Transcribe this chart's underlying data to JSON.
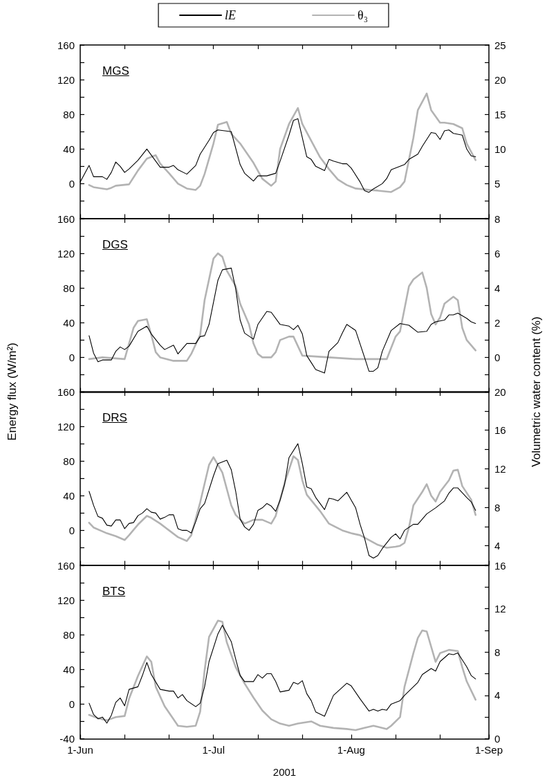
{
  "chart_data": [
    {
      "type": "line",
      "title": "MGS",
      "tick_labels": "y",
      "legend": "top",
      "marker": "none",
      "line_style": "solid",
      "xlim": [
        "2001-06-01",
        "2001-09-01"
      ],
      "ylim": [
        -40,
        160
      ],
      "yticks": [
        {
          "value": -40,
          "label": null
        },
        {
          "value": -20,
          "label": null
        },
        0,
        {
          "value": 20,
          "label": null
        },
        40,
        {
          "value": 60,
          "label": null
        },
        80,
        {
          "value": 100,
          "label": null
        },
        120,
        {
          "value": 140,
          "label": null
        },
        160
      ],
      "y2lim": [
        0,
        25
      ],
      "y2ticks": [
        {
          "value": 0,
          "label": null
        },
        {
          "value": 2.5,
          "label": null
        },
        5,
        {
          "value": 7.5,
          "label": null
        },
        10,
        {
          "value": 12.5,
          "label": null
        },
        15,
        {
          "value": 17.5,
          "label": null
        },
        20,
        {
          "value": 22.5,
          "label": null
        },
        25
      ],
      "series": [
        {
          "name": "lE",
          "color": "#000000",
          "x": [
            "2001-06-01",
            "2001-06-03",
            "2001-06-04",
            "2001-06-05",
            "2001-06-06",
            "2001-06-07",
            "2001-06-08",
            "2001-06-09",
            "2001-06-10",
            "2001-06-11",
            "2001-06-12",
            "2001-06-14",
            "2001-06-16",
            "2001-06-17",
            "2001-06-19",
            "2001-06-21",
            "2001-06-22",
            "2001-06-23",
            "2001-06-25",
            "2001-06-27",
            "2001-06-28",
            "2001-06-30",
            "2001-07-01",
            "2001-07-02",
            "2001-07-05",
            "2001-07-07",
            "2001-07-08",
            "2001-07-10",
            "2001-07-11",
            "2001-07-13",
            "2001-07-15",
            "2001-07-16",
            "2001-07-18",
            "2001-07-19",
            "2001-07-20",
            "2001-07-22",
            "2001-07-23",
            "2001-07-24",
            "2001-07-26",
            "2001-07-27",
            "2001-07-28",
            "2001-07-30",
            "2001-07-31",
            "2001-08-01",
            "2001-08-03",
            "2001-08-04",
            "2001-08-05",
            "2001-08-06",
            "2001-08-08",
            "2001-08-09",
            "2001-08-10",
            "2001-08-12",
            "2001-08-13",
            "2001-08-14",
            "2001-08-16",
            "2001-08-17",
            "2001-08-19",
            "2001-08-20",
            "2001-08-21",
            "2001-08-22",
            "2001-08-23",
            "2001-08-24",
            "2001-08-26",
            "2001-08-27",
            "2001-08-28",
            "2001-08-29"
          ],
          "values": [
            2,
            21,
            8,
            8,
            8,
            5,
            13,
            25,
            20,
            13,
            17,
            27,
            40,
            33,
            19,
            19,
            21,
            16,
            11,
            21,
            34,
            50,
            59,
            62,
            60,
            22,
            12,
            3,
            9,
            9,
            12,
            26,
            56,
            73,
            75,
            31,
            28,
            20,
            15,
            28,
            26,
            23,
            23,
            18,
            2,
            -8,
            -10,
            -6,
            0,
            6,
            16,
            20,
            22,
            28,
            34,
            43,
            59,
            58,
            51,
            61,
            62,
            58,
            56,
            40,
            32,
            31
          ]
        },
        {
          "name": "θ₃",
          "color": "#b3b3b3",
          "axis": "y2",
          "x": [
            "2001-06-03",
            "2001-06-04",
            "2001-06-07",
            "2001-06-08",
            "2001-06-09",
            "2001-06-12",
            "2001-06-14",
            "2001-06-16",
            "2001-06-18",
            "2001-06-19",
            "2001-06-21",
            "2001-06-23",
            "2001-06-25",
            "2001-06-27",
            "2001-06-28",
            "2001-06-29",
            "2001-07-01",
            "2001-07-02",
            "2001-07-04",
            "2001-07-05",
            "2001-07-07",
            "2001-07-10",
            "2001-07-12",
            "2001-07-14",
            "2001-07-15",
            "2001-07-16",
            "2001-07-18",
            "2001-07-20",
            "2001-07-21",
            "2001-07-23",
            "2001-07-25",
            "2001-07-27",
            "2001-07-29",
            "2001-07-31",
            "2001-08-02",
            "2001-08-05",
            "2001-08-07",
            "2001-08-10",
            "2001-08-12",
            "2001-08-13",
            "2001-08-15",
            "2001-08-16",
            "2001-08-18",
            "2001-08-19",
            "2001-08-21",
            "2001-08-22",
            "2001-08-24",
            "2001-08-26",
            "2001-08-27",
            "2001-08-29"
          ],
          "values": [
            4.8,
            4.5,
            4.2,
            4.4,
            4.7,
            4.9,
            6.9,
            8.6,
            9.1,
            7.9,
            6.5,
            5.0,
            4.3,
            4.1,
            4.7,
            6.4,
            10.8,
            13.5,
            13.9,
            12.2,
            10.8,
            8.0,
            5.7,
            4.7,
            5.3,
            10.0,
            13.6,
            15.9,
            13.6,
            11.2,
            8.8,
            7.1,
            5.6,
            4.8,
            4.3,
            4.1,
            4.0,
            3.8,
            4.5,
            5.3,
            11.6,
            15.6,
            18.0,
            15.6,
            13.8,
            13.8,
            13.6,
            13.0,
            10.8,
            8.4
          ]
        }
      ]
    },
    {
      "type": "line",
      "title": "DGS",
      "tick_labels": "y",
      "ylabel": "Energy flux (W/m²)",
      "y2label": "Volumetric water content (%)",
      "marker": "none",
      "line_style": "solid",
      "xlim": [
        "2001-06-01",
        "2001-09-01"
      ],
      "ylim": [
        -40,
        160
      ],
      "yticks": [
        {
          "value": -40,
          "label": null
        },
        {
          "value": -20,
          "label": null
        },
        0,
        {
          "value": 20,
          "label": null
        },
        40,
        {
          "value": 60,
          "label": null
        },
        80,
        {
          "value": 100,
          "label": null
        },
        120,
        {
          "value": 140,
          "label": null
        },
        160
      ],
      "y2lim": [
        -2,
        8
      ],
      "y2ticks": [
        {
          "value": -2,
          "label": null
        },
        {
          "value": -1,
          "label": null
        },
        0,
        {
          "value": 1,
          "label": null
        },
        2,
        {
          "value": 3,
          "label": null
        },
        4,
        {
          "value": 5,
          "label": null
        },
        6,
        {
          "value": 7,
          "label": null
        },
        8
      ],
      "series": [
        {
          "color": "#000000",
          "x": [
            "2001-06-03",
            "2001-06-04",
            "2001-06-05",
            "2001-06-06",
            "2001-06-08",
            "2001-06-09",
            "2001-06-10",
            "2001-06-11",
            "2001-06-12",
            "2001-06-14",
            "2001-06-16",
            "2001-06-17",
            "2001-06-19",
            "2001-06-20",
            "2001-06-22",
            "2001-06-23",
            "2001-06-25",
            "2001-06-27",
            "2001-06-28",
            "2001-06-29",
            "2001-06-30",
            "2001-07-02",
            "2001-07-03",
            "2001-07-05",
            "2001-07-06",
            "2001-07-07",
            "2001-07-08",
            "2001-07-10",
            "2001-07-11",
            "2001-07-13",
            "2001-07-14",
            "2001-07-16",
            "2001-07-18",
            "2001-07-19",
            "2001-07-20",
            "2001-07-21",
            "2001-07-22",
            "2001-07-23",
            "2001-07-24",
            "2001-07-26",
            "2001-07-27",
            "2001-07-29",
            "2001-07-30",
            "2001-07-31",
            "2001-08-02",
            "2001-08-04",
            "2001-08-05",
            "2001-08-06",
            "2001-08-07",
            "2001-08-08",
            "2001-08-10",
            "2001-08-12",
            "2001-08-14",
            "2001-08-16",
            "2001-08-18",
            "2001-08-19",
            "2001-08-20",
            "2001-08-22",
            "2001-08-23",
            "2001-08-24",
            "2001-08-25",
            "2001-08-27",
            "2001-08-28",
            "2001-08-29"
          ],
          "values": [
            25,
            5,
            -5,
            -3,
            -3,
            7,
            12,
            9,
            13,
            30,
            36,
            27,
            14,
            9,
            14,
            4,
            16,
            16,
            24,
            25,
            38,
            89,
            101,
            103,
            79,
            43,
            28,
            21,
            38,
            53,
            52,
            38,
            36,
            32,
            37,
            27,
            2,
            -6,
            -14,
            -18,
            7,
            17,
            28,
            38,
            31,
            0,
            -16,
            -16,
            -12,
            7,
            31,
            39,
            37,
            29,
            30,
            38,
            41,
            43,
            49,
            49,
            51,
            45,
            41,
            39
          ]
        },
        {
          "color": "#b3b3b3",
          "axis": "y2",
          "x": [
            "2001-06-03",
            "2001-06-06",
            "2001-06-11",
            "2001-06-13",
            "2001-06-14",
            "2001-06-16",
            "2001-06-17",
            "2001-06-18",
            "2001-06-19",
            "2001-06-22",
            "2001-06-25",
            "2001-06-26",
            "2001-06-28",
            "2001-06-29",
            "2001-07-01",
            "2001-07-02",
            "2001-07-03",
            "2001-07-04",
            "2001-07-06",
            "2001-07-07",
            "2001-07-09",
            "2001-07-10",
            "2001-07-11",
            "2001-07-12",
            "2001-07-14",
            "2001-07-15",
            "2001-07-16",
            "2001-07-18",
            "2001-07-19",
            "2001-07-21",
            "2001-08-02",
            "2001-08-06",
            "2001-08-09",
            "2001-08-11",
            "2001-08-12",
            "2001-08-14",
            "2001-08-15",
            "2001-08-17",
            "2001-08-18",
            "2001-08-19",
            "2001-08-20",
            "2001-08-21",
            "2001-08-22",
            "2001-08-24",
            "2001-08-25",
            "2001-08-26",
            "2001-08-27",
            "2001-08-29"
          ],
          "values": [
            -0.1,
            0.0,
            -0.1,
            1.7,
            2.1,
            2.2,
            1.3,
            0.3,
            0.0,
            -0.2,
            -0.2,
            0.2,
            1.3,
            3.3,
            5.7,
            6.0,
            5.8,
            5.0,
            4.1,
            3.1,
            1.9,
            0.8,
            0.2,
            0.0,
            0.0,
            0.3,
            1.0,
            1.2,
            1.2,
            0.1,
            -0.1,
            -0.1,
            -0.1,
            1.2,
            1.5,
            4.1,
            4.5,
            4.9,
            4.0,
            2.5,
            1.9,
            2.3,
            3.1,
            3.5,
            3.3,
            1.7,
            1.0,
            0.4
          ]
        }
      ]
    },
    {
      "type": "line",
      "title": "DRS",
      "tick_labels": "y",
      "marker": "none",
      "line_style": "solid",
      "xlim": [
        "2001-06-01",
        "2001-09-01"
      ],
      "ylim": [
        -40,
        160
      ],
      "yticks": [
        {
          "value": -40,
          "label": null
        },
        {
          "value": -20,
          "label": null
        },
        0,
        {
          "value": 20,
          "label": null
        },
        40,
        {
          "value": 60,
          "label": null
        },
        80,
        {
          "value": 100,
          "label": null
        },
        120,
        {
          "value": 140,
          "label": null
        },
        160
      ],
      "y2lim": [
        2,
        20
      ],
      "y2ticks": [
        {
          "value": 2,
          "label": null
        },
        4,
        {
          "value": 6,
          "label": null
        },
        8,
        {
          "value": 10,
          "label": null
        },
        12,
        {
          "value": 14,
          "label": null
        },
        16,
        {
          "value": 18,
          "label": null
        },
        20
      ],
      "series": [
        {
          "color": "#000000",
          "x": [
            "2001-06-03",
            "2001-06-04",
            "2001-06-05",
            "2001-06-06",
            "2001-06-07",
            "2001-06-08",
            "2001-06-09",
            "2001-06-10",
            "2001-06-11",
            "2001-06-12",
            "2001-06-13",
            "2001-06-14",
            "2001-06-15",
            "2001-06-16",
            "2001-06-17",
            "2001-06-18",
            "2001-06-19",
            "2001-06-20",
            "2001-06-21",
            "2001-06-22",
            "2001-06-23",
            "2001-06-24",
            "2001-06-25",
            "2001-06-26",
            "2001-06-27",
            "2001-06-28",
            "2001-06-29",
            "2001-07-01",
            "2001-07-02",
            "2001-07-04",
            "2001-07-05",
            "2001-07-06",
            "2001-07-07",
            "2001-07-08",
            "2001-07-09",
            "2001-07-10",
            "2001-07-11",
            "2001-07-12",
            "2001-07-13",
            "2001-07-14",
            "2001-07-15",
            "2001-07-16",
            "2001-07-17",
            "2001-07-18",
            "2001-07-20",
            "2001-07-21",
            "2001-07-22",
            "2001-07-23",
            "2001-07-24",
            "2001-07-26",
            "2001-07-27",
            "2001-07-28",
            "2001-07-29",
            "2001-07-31",
            "2001-08-02",
            "2001-08-03",
            "2001-08-04",
            "2001-08-05",
            "2001-08-06",
            "2001-08-07",
            "2001-08-08",
            "2001-08-10",
            "2001-08-11",
            "2001-08-12",
            "2001-08-13",
            "2001-08-15",
            "2001-08-16",
            "2001-08-17",
            "2001-08-18",
            "2001-08-20",
            "2001-08-22",
            "2001-08-23",
            "2001-08-24",
            "2001-08-25",
            "2001-08-27",
            "2001-08-28",
            "2001-08-29"
          ],
          "values": [
            45,
            29,
            16,
            14,
            6,
            5,
            12,
            12,
            2,
            8,
            9,
            17,
            20,
            25,
            21,
            20,
            13,
            15,
            18,
            18,
            2,
            0,
            0,
            -3,
            10,
            25,
            31,
            63,
            77,
            81,
            70,
            45,
            13,
            4,
            0,
            7,
            23,
            26,
            31,
            28,
            22,
            35,
            53,
            84,
            100,
            77,
            50,
            48,
            38,
            24,
            37,
            36,
            34,
            44,
            26,
            7,
            -9,
            -29,
            -32,
            -29,
            -21,
            -8,
            -4,
            -10,
            0,
            7,
            7,
            13,
            19,
            26,
            34,
            43,
            49,
            49,
            38,
            33,
            23
          ]
        },
        {
          "color": "#b3b3b3",
          "axis": "y2",
          "x": [
            "2001-06-03",
            "2001-06-04",
            "2001-06-07",
            "2001-06-09",
            "2001-06-11",
            "2001-06-12",
            "2001-06-14",
            "2001-06-16",
            "2001-06-17",
            "2001-06-19",
            "2001-06-21",
            "2001-06-23",
            "2001-06-25",
            "2001-06-26",
            "2001-06-28",
            "2001-06-30",
            "2001-07-01",
            "2001-07-03",
            "2001-07-05",
            "2001-07-06",
            "2001-07-08",
            "2001-07-10",
            "2001-07-12",
            "2001-07-14",
            "2001-07-15",
            "2001-07-17",
            "2001-07-19",
            "2001-07-20",
            "2001-07-21",
            "2001-07-22",
            "2001-07-25",
            "2001-07-27",
            "2001-07-30",
            "2001-08-01",
            "2001-08-03",
            "2001-08-05",
            "2001-08-07",
            "2001-08-09",
            "2001-08-11",
            "2001-08-12",
            "2001-08-13",
            "2001-08-14",
            "2001-08-15",
            "2001-08-17",
            "2001-08-18",
            "2001-08-19",
            "2001-08-20",
            "2001-08-21",
            "2001-08-23",
            "2001-08-24",
            "2001-08-25",
            "2001-08-26",
            "2001-08-28",
            "2001-08-29"
          ],
          "values": [
            6.4,
            5.9,
            5.3,
            5.0,
            4.6,
            5.1,
            6.2,
            7.1,
            6.9,
            6.3,
            5.6,
            4.9,
            4.5,
            5.1,
            8.5,
            12.4,
            13.2,
            11.6,
            8.2,
            7.2,
            6.3,
            6.7,
            6.7,
            6.3,
            7.1,
            10.5,
            13.3,
            12.9,
            10.8,
            9.3,
            7.6,
            6.3,
            5.6,
            5.3,
            5.1,
            4.6,
            4.1,
            3.8,
            3.9,
            4.0,
            4.3,
            5.9,
            8.2,
            9.6,
            10.4,
            9.2,
            8.6,
            9.6,
            10.8,
            11.8,
            11.9,
            10.2,
            8.8,
            7.2
          ]
        }
      ]
    },
    {
      "type": "line",
      "title": "BTS",
      "xlabel": "2001",
      "marker": "none",
      "line_style": "solid",
      "xlim": [
        "2001-06-01",
        "2001-09-01"
      ],
      "xticks": [
        {
          "value": "2001-06-01",
          "label": "1-Jun"
        },
        {
          "value": "2001-06-11",
          "label": null
        },
        {
          "value": "2001-06-21",
          "label": null
        },
        {
          "value": "2001-07-01",
          "label": "1-Jul"
        },
        {
          "value": "2001-07-11",
          "label": null
        },
        {
          "value": "2001-07-21",
          "label": null
        },
        {
          "value": "2001-08-01",
          "label": "1-Aug"
        },
        {
          "value": "2001-08-11",
          "label": null
        },
        {
          "value": "2001-08-21",
          "label": null
        },
        {
          "value": "2001-09-01",
          "label": "1-Sep"
        }
      ],
      "ylim": [
        -40,
        160
      ],
      "yticks": [
        -40,
        {
          "value": -20,
          "label": null
        },
        0,
        {
          "value": 20,
          "label": null
        },
        40,
        {
          "value": 60,
          "label": null
        },
        80,
        {
          "value": 100,
          "label": null
        },
        120,
        {
          "value": 140,
          "label": null
        },
        160
      ],
      "y2lim": [
        0,
        16
      ],
      "y2ticks": [
        0,
        {
          "value": 2,
          "label": null
        },
        4,
        {
          "value": 6,
          "label": null
        },
        8,
        {
          "value": 10,
          "label": null
        },
        12,
        {
          "value": 14,
          "label": null
        },
        16
      ],
      "series": [
        {
          "color": "#000000",
          "x": [
            "2001-06-03",
            "2001-06-04",
            "2001-06-05",
            "2001-06-06",
            "2001-06-07",
            "2001-06-08",
            "2001-06-09",
            "2001-06-10",
            "2001-06-11",
            "2001-06-12",
            "2001-06-14",
            "2001-06-15",
            "2001-06-16",
            "2001-06-17",
            "2001-06-19",
            "2001-06-21",
            "2001-06-22",
            "2001-06-23",
            "2001-06-24",
            "2001-06-25",
            "2001-06-27",
            "2001-06-28",
            "2001-06-29",
            "2001-06-30",
            "2001-07-02",
            "2001-07-03",
            "2001-07-05",
            "2001-07-06",
            "2001-07-07",
            "2001-07-08",
            "2001-07-10",
            "2001-07-11",
            "2001-07-12",
            "2001-07-13",
            "2001-07-14",
            "2001-07-15",
            "2001-07-16",
            "2001-07-18",
            "2001-07-19",
            "2001-07-20",
            "2001-07-21",
            "2001-07-22",
            "2001-07-23",
            "2001-07-24",
            "2001-07-26",
            "2001-07-28",
            "2001-07-31",
            "2001-08-01",
            "2001-08-03",
            "2001-08-05",
            "2001-08-06",
            "2001-08-07",
            "2001-08-08",
            "2001-08-09",
            "2001-08-10",
            "2001-08-12",
            "2001-08-13",
            "2001-08-15",
            "2001-08-16",
            "2001-08-17",
            "2001-08-19",
            "2001-08-20",
            "2001-08-21",
            "2001-08-23",
            "2001-08-24",
            "2001-08-25",
            "2001-08-27",
            "2001-08-28",
            "2001-08-29"
          ],
          "values": [
            1,
            -12,
            -17,
            -15,
            -22,
            -13,
            2,
            7,
            -2,
            17,
            20,
            33,
            48,
            34,
            17,
            15,
            15,
            7,
            11,
            4,
            -3,
            1,
            20,
            49,
            81,
            91,
            72,
            52,
            33,
            26,
            26,
            34,
            30,
            35,
            35,
            26,
            14,
            16,
            25,
            23,
            27,
            12,
            4,
            -9,
            -14,
            10,
            24,
            21,
            6,
            -8,
            -6,
            -8,
            -6,
            -7,
            0,
            4,
            10,
            20,
            25,
            34,
            41,
            38,
            49,
            58,
            57,
            59,
            43,
            33,
            29
          ]
        },
        {
          "color": "#b3b3b3",
          "axis": "y2",
          "x": [
            "2001-06-03",
            "2001-06-05",
            "2001-06-07",
            "2001-06-09",
            "2001-06-11",
            "2001-06-12",
            "2001-06-14",
            "2001-06-16",
            "2001-06-17",
            "2001-06-18",
            "2001-06-20",
            "2001-06-22",
            "2001-06-23",
            "2001-06-25",
            "2001-06-27",
            "2001-06-28",
            "2001-06-29",
            "2001-06-30",
            "2001-07-02",
            "2001-07-03",
            "2001-07-04",
            "2001-07-06",
            "2001-07-08",
            "2001-07-10",
            "2001-07-12",
            "2001-07-14",
            "2001-07-16",
            "2001-07-18",
            "2001-07-20",
            "2001-07-23",
            "2001-07-25",
            "2001-07-28",
            "2001-07-31",
            "2001-08-02",
            "2001-08-04",
            "2001-08-06",
            "2001-08-07",
            "2001-08-09",
            "2001-08-10",
            "2001-08-12",
            "2001-08-13",
            "2001-08-15",
            "2001-08-16",
            "2001-08-17",
            "2001-08-18",
            "2001-08-20",
            "2001-08-21",
            "2001-08-23",
            "2001-08-25",
            "2001-08-26",
            "2001-08-27",
            "2001-08-29"
          ],
          "values": [
            2.2,
            1.9,
            1.7,
            2.0,
            2.1,
            3.7,
            5.8,
            7.6,
            7.1,
            4.8,
            3.0,
            1.8,
            1.2,
            1.1,
            1.2,
            2.5,
            6.3,
            9.4,
            10.9,
            10.8,
            8.9,
            6.6,
            5.1,
            3.8,
            2.6,
            1.8,
            1.4,
            1.2,
            1.4,
            1.6,
            1.2,
            1.0,
            0.9,
            0.8,
            1.0,
            1.2,
            1.1,
            0.9,
            1.2,
            2.0,
            4.8,
            7.9,
            9.3,
            10.0,
            9.9,
            7.1,
            7.9,
            8.2,
            8.1,
            6.6,
            5.3,
            3.6
          ]
        }
      ]
    }
  ]
}
